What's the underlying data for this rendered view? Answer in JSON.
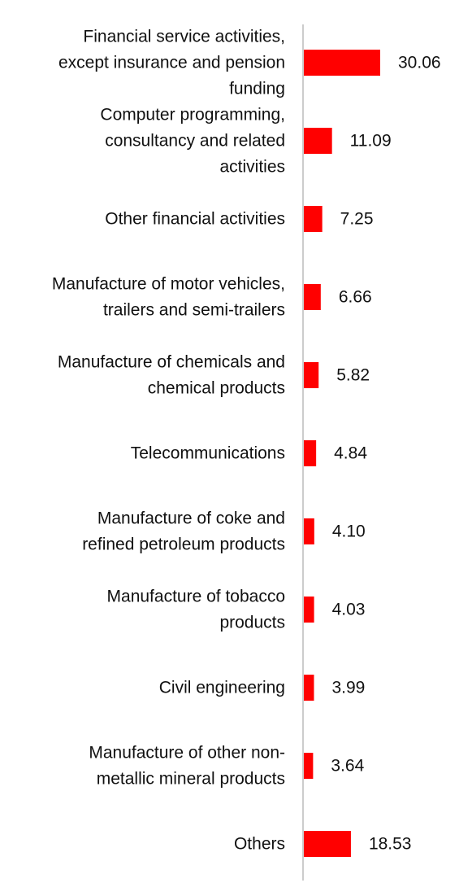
{
  "chart_data": {
    "type": "bar",
    "orientation": "horizontal",
    "categories": [
      [
        "Financial service activities,",
        "except insurance and pension",
        "funding"
      ],
      [
        "Computer programming,",
        "consultancy and related",
        "activities"
      ],
      [
        "Other financial activities"
      ],
      [
        "Manufacture of motor vehicles,",
        "trailers and semi-trailers"
      ],
      [
        "Manufacture of chemicals and",
        "chemical products"
      ],
      [
        "Telecommunications"
      ],
      [
        "Manufacture of coke and",
        "refined petroleum products"
      ],
      [
        "Manufacture of tobacco",
        "products"
      ],
      [
        "Civil engineering"
      ],
      [
        "Manufacture of other non-",
        "metallic mineral products"
      ],
      [
        "Others"
      ]
    ],
    "values": [
      30.06,
      11.09,
      7.25,
      6.66,
      5.82,
      4.84,
      4.1,
      4.03,
      3.99,
      3.64,
      18.53
    ],
    "value_labels": [
      "30.06",
      "11.09",
      "7.25",
      "6.66",
      "5.82",
      "4.84",
      "4.10",
      "4.03",
      "3.99",
      "3.64",
      "18.53"
    ],
    "title": "",
    "xlabel": "",
    "ylabel": "",
    "xlim": [
      0,
      30.06
    ],
    "grid": false,
    "legend": "none",
    "bar_color": "#ff0000",
    "axis_color": "#cccccc"
  }
}
